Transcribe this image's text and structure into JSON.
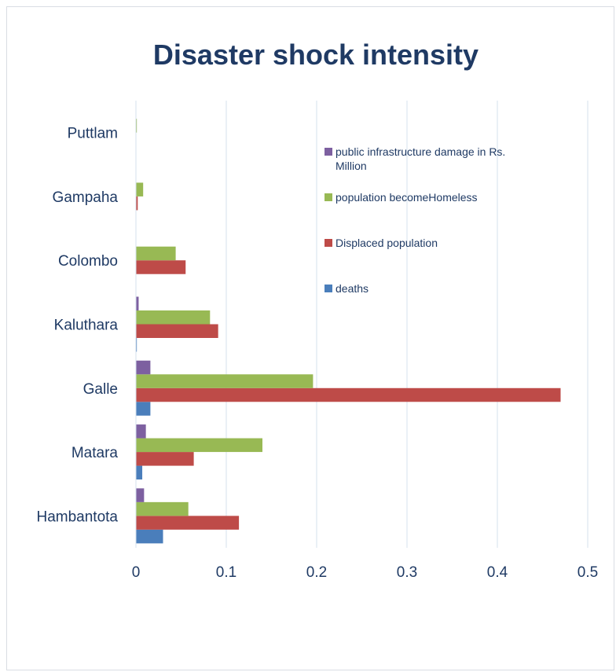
{
  "chart_data": {
    "type": "bar",
    "orientation": "horizontal",
    "title": "Disaster shock intensity",
    "xlabel": "",
    "ylabel": "",
    "xlim": [
      0,
      0.5
    ],
    "xticks": [
      "0",
      "0.1",
      "0.2",
      "0.3",
      "0.4",
      "0.5"
    ],
    "xtick_values": [
      0,
      0.1,
      0.2,
      0.3,
      0.4,
      0.5
    ],
    "grid": true,
    "legend_position": "right",
    "categories": [
      "Hambantota",
      "Matara",
      "Galle",
      "Kaluthara",
      "Colombo",
      "Gampaha",
      "Puttlam"
    ],
    "series": [
      {
        "name": "deaths",
        "color": "#4a7ebb",
        "values": [
          0.03,
          0.007,
          0.016,
          0.001,
          0,
          0,
          0
        ]
      },
      {
        "name": "Displaced population",
        "color": "#be4b48",
        "values": [
          0.114,
          0.064,
          0.47,
          0.091,
          0.055,
          0.002,
          0
        ]
      },
      {
        "name": "population becomeHomeless",
        "color": "#98b954",
        "values": [
          0.058,
          0.14,
          0.196,
          0.082,
          0.044,
          0.008,
          0.001
        ]
      },
      {
        "name": "public infrastructure damage in Rs. Million",
        "color": "#7d60a0",
        "values": [
          0.009,
          0.011,
          0.016,
          0.003,
          0,
          0,
          0
        ]
      }
    ],
    "legend_order": [
      "public infrastructure damage in Rs. Million",
      "population becomeHomeless",
      "Displaced population",
      "deaths"
    ]
  }
}
